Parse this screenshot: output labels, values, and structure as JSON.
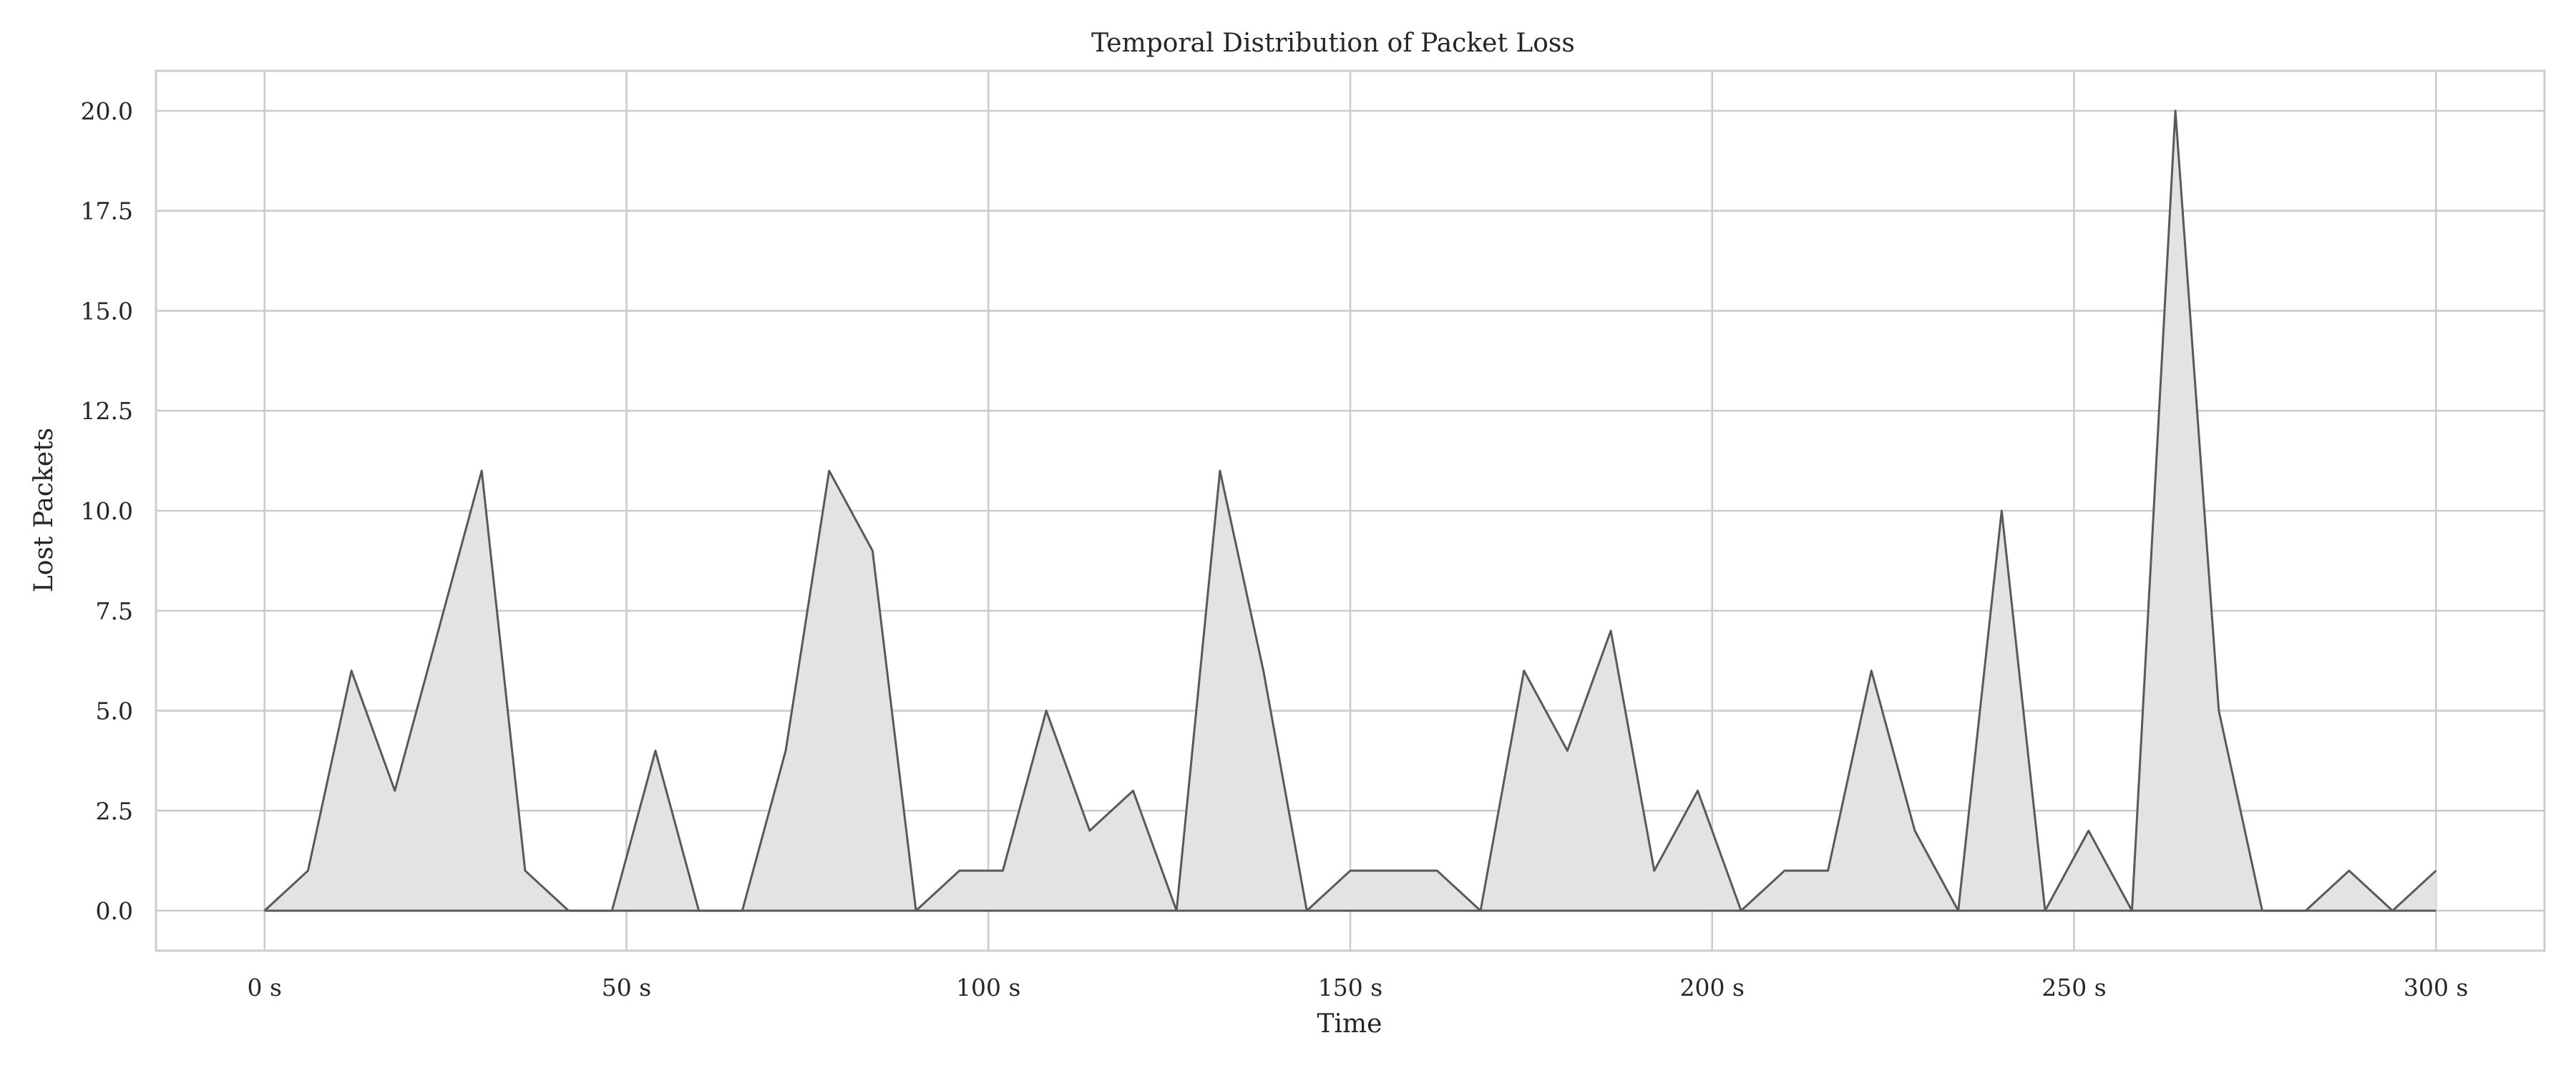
{
  "chart_data": {
    "type": "area",
    "title": "Temporal Distribution of Packet Loss",
    "xlabel": "Time",
    "ylabel": "Lost Packets",
    "xlim": [
      -15,
      315
    ],
    "ylim": [
      -1,
      21
    ],
    "x_ticks": [
      0,
      50,
      100,
      150,
      200,
      250,
      300
    ],
    "x_tick_labels": [
      "0 s",
      "50 s",
      "100 s",
      "150 s",
      "200 s",
      "250 s",
      "300 s"
    ],
    "y_ticks": [
      0,
      2.5,
      5,
      7.5,
      10,
      12.5,
      15,
      17.5,
      20
    ],
    "y_tick_labels": [
      "0.0",
      "2.5",
      "5.0",
      "7.5",
      "10.0",
      "12.5",
      "15.0",
      "17.5",
      "20.0"
    ],
    "grid": true,
    "series": [
      {
        "x": [
          0,
          6,
          12,
          18,
          24,
          30,
          36,
          42,
          48,
          54,
          60,
          66,
          72,
          78,
          84,
          90,
          96,
          102,
          108,
          114,
          120,
          126,
          132,
          138,
          144,
          150,
          156,
          162,
          168,
          174,
          180,
          186,
          192,
          198,
          204,
          210,
          216,
          222,
          228,
          234,
          240,
          246,
          252,
          258,
          264,
          270,
          276,
          282,
          288,
          294,
          300
        ],
        "values": [
          0,
          1,
          6,
          3,
          7,
          11,
          1,
          0,
          0,
          4,
          0,
          0,
          4,
          11,
          9,
          0,
          1,
          1,
          5,
          2,
          3,
          0,
          11,
          6,
          0,
          1,
          1,
          1,
          0,
          6,
          4,
          7,
          1,
          3,
          0,
          1,
          1,
          6,
          2,
          0,
          10,
          0,
          2,
          0,
          20,
          5,
          0,
          0,
          1,
          0,
          1
        ]
      }
    ],
    "colors": {
      "line": "#595959",
      "fill": "#e3e3e3",
      "grid": "#cccccc"
    }
  }
}
